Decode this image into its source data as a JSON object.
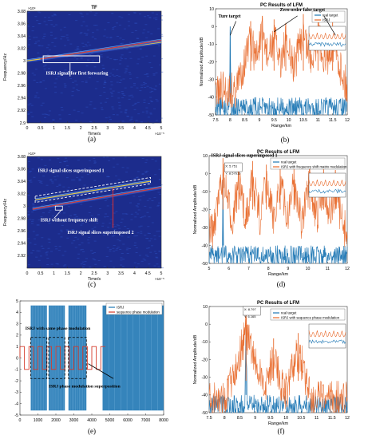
{
  "chart_data": [
    {
      "id": "a",
      "type": "heatmap",
      "caption": "(a)",
      "title": "TF",
      "xlabel": "Time/s",
      "ylabel": "Frequency/Hz",
      "x_exponent": "×10⁻⁵",
      "y_exponent": "×10⁹",
      "xlim": [
        0,
        5
      ],
      "ylim": [
        2.9,
        3.08
      ],
      "x_ticks": [
        "0",
        "0.5",
        "1",
        "1.5",
        "2",
        "2.5",
        "3",
        "3.5",
        "4",
        "4.5",
        "5"
      ],
      "y_ticks": [
        "2.9",
        "2.92",
        "2.94",
        "2.96",
        "2.98",
        "3",
        "3.02",
        "3.04",
        "3.06",
        "3.08"
      ],
      "colors": {
        "background": "#1c2c8c",
        "tone": "#2f55c8",
        "highlight": "#e6c94a",
        "hot": "#d8453b"
      },
      "lines": [
        {
          "name": "linear-fm",
          "points": [
            [
              0,
              3.0
            ],
            [
              5,
              3.03
            ]
          ]
        },
        {
          "name": "forwarded-slice",
          "points": [
            [
              0.5,
              3.003
            ],
            [
              5,
              3.033
            ]
          ]
        }
      ],
      "annotations": [
        {
          "text": "ISRJ signal for first forwaring",
          "target": [
            1.6,
            3.0
          ]
        }
      ]
    },
    {
      "id": "b",
      "type": "line",
      "caption": "(b)",
      "title": "PC Results of LFM",
      "xlabel": "Range/km",
      "ylabel": "Normalized Amplitude/dB",
      "xlim": [
        7.5,
        12
      ],
      "ylim": [
        -50,
        10
      ],
      "x_ticks": [
        "7.5",
        "8",
        "8.5",
        "9",
        "9.5",
        "10",
        "10.5",
        "11",
        "11.5",
        "12"
      ],
      "y_ticks": [
        "10",
        "0",
        "-10",
        "-20",
        "-30",
        "-40",
        "-50"
      ],
      "series": [
        {
          "name": "real target",
          "color": "#1f77b4",
          "peaks": [
            [
              8.0,
              0
            ]
          ],
          "floor": -40
        },
        {
          "name": "ISRJ",
          "color": "#e8692a",
          "peaks": [
            [
              8.7,
              3
            ],
            [
              9.1,
              6
            ],
            [
              9.5,
              4
            ],
            [
              9.9,
              2
            ],
            [
              10.5,
              7
            ],
            [
              11.0,
              6
            ],
            [
              11.5,
              3
            ]
          ],
          "floor": -25
        }
      ],
      "annotations": [
        "Ture target",
        "Zero-order false target"
      ]
    },
    {
      "id": "c",
      "type": "heatmap",
      "caption": "(c)",
      "xlabel": "Time/s",
      "ylabel": "Frequency/Hz",
      "x_exponent": "×10⁻⁵",
      "y_exponent": "×10⁹",
      "xlim": [
        0,
        5
      ],
      "ylim": [
        2.9,
        3.08
      ],
      "x_ticks": [
        "0",
        "0.5",
        "1",
        "1.5",
        "2",
        "2.5",
        "3",
        "3.5",
        "4",
        "4.5",
        "5"
      ],
      "y_ticks": [
        "2.92",
        "2.94",
        "2.96",
        "2.98",
        "3",
        "3.02",
        "3.04",
        "3.06",
        "3.08"
      ],
      "colors": {
        "background": "#1c2c8c",
        "tone": "#2f55c8",
        "highlight": "#e6c94a",
        "hot": "#d8453b"
      },
      "lines": [
        {
          "name": "slices-1",
          "points": [
            [
              0.3,
              3.01
            ],
            [
              4.6,
              3.04
            ]
          ]
        },
        {
          "name": "slices-2",
          "points": [
            [
              0.2,
              2.995
            ],
            [
              5,
              3.03
            ]
          ]
        }
      ],
      "annotations": [
        {
          "text": "ISRJ signal slices superimposed 1"
        },
        {
          "text": "ISRJ without frequency shift"
        },
        {
          "text": "ISRJ signal slices superimposed 2"
        }
      ]
    },
    {
      "id": "d",
      "type": "line",
      "caption": "(d)",
      "title": "PC Results of LFM",
      "xlabel": "Range/km",
      "ylabel": "Normalized Amplitude/dB",
      "xlim": [
        5,
        12
      ],
      "ylim": [
        -50,
        10
      ],
      "x_ticks": [
        "5",
        "6",
        "7",
        "8",
        "9",
        "10",
        "11",
        "12"
      ],
      "y_ticks": [
        "10",
        "0",
        "-10",
        "-20",
        "-30",
        "-40",
        "-50"
      ],
      "series": [
        {
          "name": "real target",
          "color": "#1f77b4",
          "peaks": [
            [
              5.7,
              0
            ]
          ],
          "floor": -40
        },
        {
          "name": "ISRJ with frequency shift matrix modulation",
          "color": "#e8692a",
          "peaks": [
            [
              5.7,
              8.6
            ],
            [
              6.5,
              5
            ],
            [
              7.2,
              7
            ],
            [
              7.9,
              5
            ],
            [
              8.6,
              6
            ],
            [
              9.3,
              6
            ],
            [
              10.1,
              5
            ],
            [
              10.8,
              5
            ],
            [
              11.4,
              2
            ]
          ],
          "floor": -20
        }
      ],
      "datatip": {
        "x": "X: 5.751",
        "y": "Y: 8.57613"
      },
      "annotations": [
        "ISRJ signal slices superimposed 1"
      ]
    },
    {
      "id": "e",
      "type": "line",
      "caption": "(e)",
      "xlim": [
        0,
        8000
      ],
      "ylim": [
        -5,
        5
      ],
      "x_ticks": [
        "0",
        "1000",
        "2000",
        "3000",
        "4000",
        "5000",
        "6000",
        "7000",
        "8000"
      ],
      "y_ticks": [
        "5",
        "4",
        "3",
        "2",
        "1",
        "0",
        "-1",
        "-2",
        "-3",
        "-4",
        "-5"
      ],
      "series": [
        {
          "name": "ISRJ",
          "color": "#1f77b4"
        },
        {
          "name": "sequence phase modulation",
          "color": "#d43a2a"
        }
      ],
      "annotations": [
        "ISRJ with same phase modulation",
        "ISRJ phase modulation superposition"
      ]
    },
    {
      "id": "f",
      "type": "line",
      "caption": "(f)",
      "title": "PC Results of LFM",
      "xlabel": "Range/km",
      "ylabel": "Normalized Amplitude/dB",
      "xlim": [
        7.5,
        12
      ],
      "ylim": [
        -50,
        10
      ],
      "x_ticks": [
        "7.5",
        "8",
        "8.5",
        "9",
        "9.5",
        "10",
        "10.5",
        "11",
        "11.5",
        "12"
      ],
      "y_ticks": [
        "10",
        "0",
        "-10",
        "-20",
        "-30",
        "-40",
        "-50"
      ],
      "series": [
        {
          "name": "real target",
          "color": "#1f77b4",
          "peaks": [
            [
              8.7,
              6
            ]
          ],
          "floor": -40
        },
        {
          "name": "ISRJ with sequence phase modulation",
          "color": "#e8692a",
          "peaks": [
            [
              8.7,
              6
            ],
            [
              9.6,
              -8
            ],
            [
              10.4,
              -5
            ]
          ],
          "floor": -32
        }
      ],
      "datatip": {
        "x": "X: 8.797",
        "y": "Y: 6.165"
      }
    }
  ]
}
